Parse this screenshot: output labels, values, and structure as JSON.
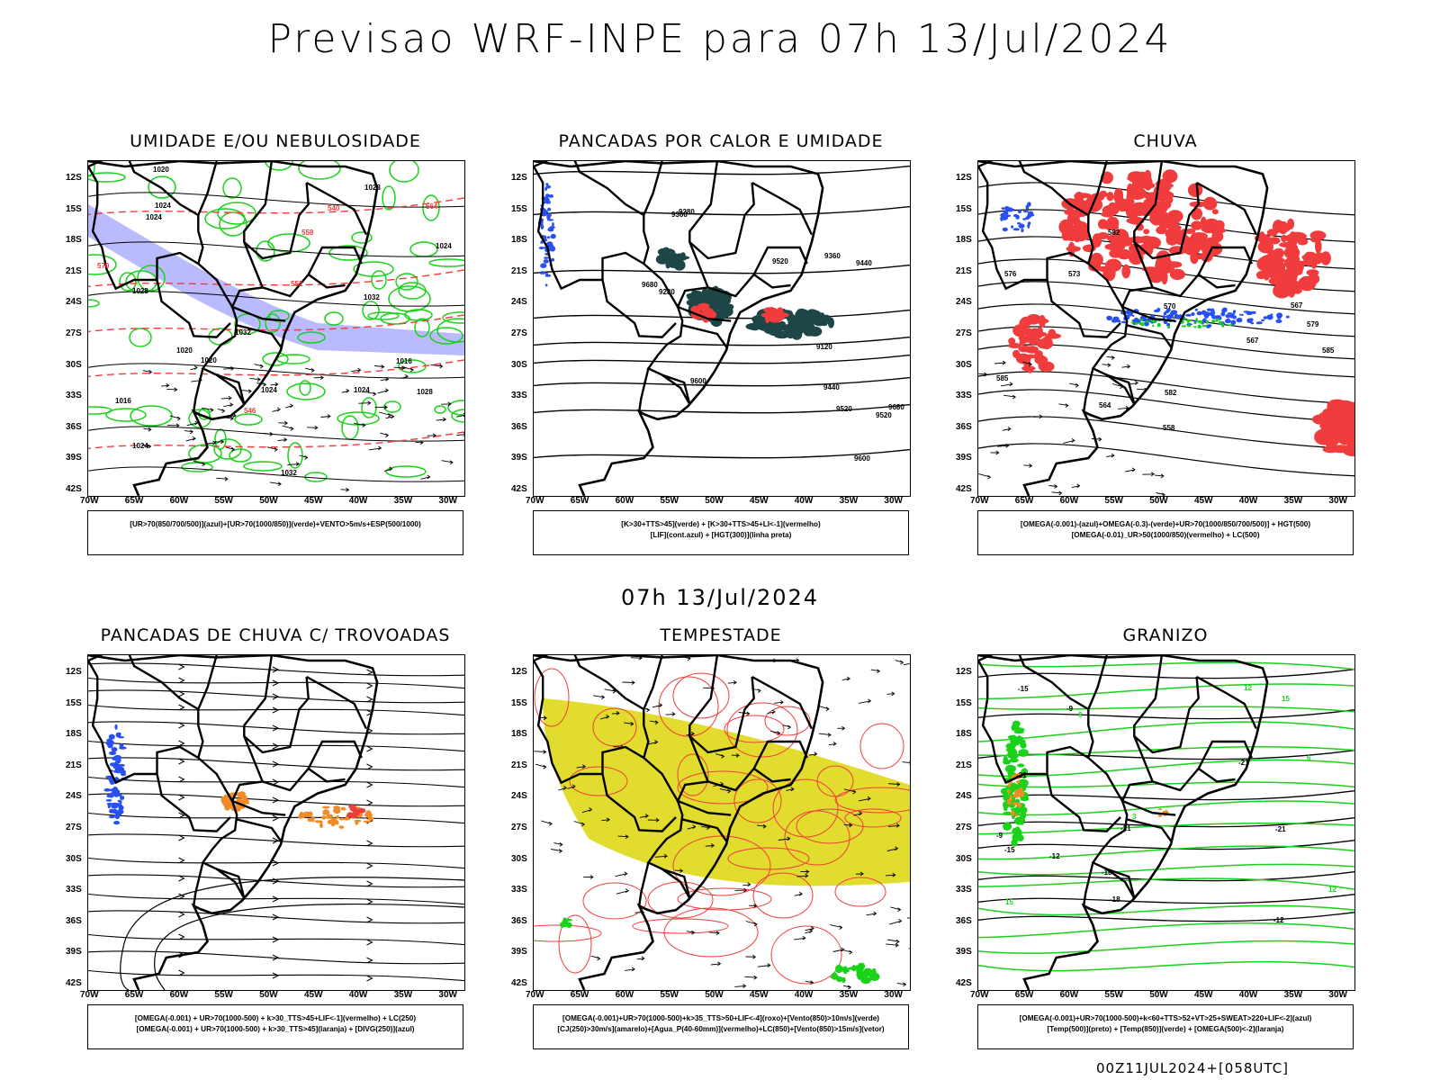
{
  "title": "Previsao WRF-INPE  para 07h 13/Jul/2024",
  "subtitle": "07h 13/Jul/2024",
  "footer": "00Z11JUL2024+[058UTC]",
  "axes": {
    "lat_labels": [
      "12S",
      "15S",
      "18S",
      "21S",
      "24S",
      "27S",
      "30S",
      "33S",
      "36S",
      "39S",
      "42S"
    ],
    "lon_labels": [
      "70W",
      "65W",
      "60W",
      "55W",
      "50W",
      "45W",
      "40W",
      "35W",
      "30W"
    ]
  },
  "colors": {
    "humidity_blue": "#b3b3ff",
    "green": "#19d219",
    "red": "#f03c3c",
    "dark_teal": "#1e4646",
    "blue": "#2850f0",
    "orange": "#f08c28",
    "yellow": "#e1dc2d",
    "pink": "#f0a0a0"
  },
  "panels": [
    {
      "id": "umidade",
      "title": "UMIDADE E/OU NEBULOSIDADE",
      "legend": [
        "[UR>70(850/700/500)](azul)+[UR>70(1000/850)](verde)+VENTO>5m/s+ESP(500/1000)"
      ],
      "contour_labels": [
        "1016",
        "1016",
        "1020",
        "1024",
        "1020",
        "1024",
        "1024",
        "1024",
        "1024",
        "1028",
        "1032",
        "1032",
        "1028",
        "1028",
        "1024",
        "1020",
        "1032",
        "570",
        "564",
        "558",
        "552",
        "546",
        "540"
      ]
    },
    {
      "id": "pancadas-calor",
      "title": "PANCADAS POR CALOR E UMIDADE",
      "legend": [
        "[K>30+TTS>45](verde) + [K>30+TTS>45+LI<-1](vermelho)",
        "[LIF](cont.azul) + [HGT(300)](linha preta)"
      ],
      "contour_labels": [
        "9680",
        "9680",
        "9600",
        "9520",
        "9440",
        "9360",
        "9280",
        "9600",
        "9520",
        "9440",
        "9360",
        "9280",
        "9120",
        "9520"
      ]
    },
    {
      "id": "chuva",
      "title": "CHUVA",
      "legend": [
        "[OMEGA(-0.001)-(azul)+OMEGA(-0.3)-(verde)+UR>70(1000/850/700/500)] + HGT(500)",
        "[OMEGA(-0.01)_UR>50(1000/850)(vermelho) + LC(500)"
      ],
      "contour_labels": [
        "585",
        "582",
        "579",
        "576",
        "573",
        "570",
        "567",
        "564",
        "567",
        "558",
        "585",
        "582"
      ]
    },
    {
      "id": "trovoadas",
      "title": "PANCADAS DE CHUVA C/ TROVOADAS",
      "legend": [
        "[OMEGA(-0.001) + UR>70(1000-500) + k>30_TTS>45+LIF<-1](vermelho) + LC(250)",
        "[OMEGA(-0.001) + UR>70(1000-500) + k>30_TTS>45](laranja) + [DIVG(250)](azul)"
      ],
      "contour_labels": []
    },
    {
      "id": "tempestade",
      "title": "TEMPESTADE",
      "legend": [
        "[OMEGA(-0.001)+UR>70(1000-500)+k>35_TTS>50+LIF<-4](roxo)+[Vento(850)>10m/s](verde)",
        "[CJ(250)>30m/s](amarelo)+[Agua_P(40-60mm)](vermelho)+LC(850)+[Vento(850)>15m/s](vetor)"
      ],
      "contour_labels": []
    },
    {
      "id": "granizo",
      "title": "GRANIZO",
      "legend": [
        "[OMEGA(-0.001)+UR>70(1000-500)+k<60+TTS>52+VT>25+SWEAT>220+LIF<-2](azul)",
        "[Temp(500)](preto) + [Temp(850)](verde) + [OMEGA(500)<-2](laranja)"
      ],
      "contour_labels": [
        "-9",
        "-9",
        "-12",
        "-12",
        "-15",
        "-15",
        "-18",
        "-18",
        "-21",
        "-21",
        "-21",
        "-21",
        "15",
        "12",
        "9",
        "6",
        "3",
        "15",
        "12"
      ]
    }
  ]
}
